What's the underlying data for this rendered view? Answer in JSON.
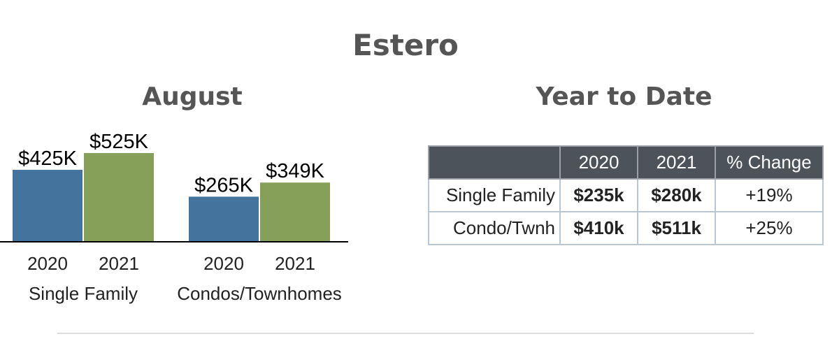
{
  "page": {
    "title": "Estero"
  },
  "chart_data": {
    "type": "bar",
    "title": "August",
    "xlabel": "",
    "ylabel": "",
    "ylim": [
      0,
      600
    ],
    "grid": false,
    "groups": [
      {
        "name": "Single Family",
        "bars": [
          {
            "category": "2020",
            "value": 425,
            "label": "$425K",
            "color": "#44749d"
          },
          {
            "category": "2021",
            "value": 525,
            "label": "$525K",
            "color": "#86a05a"
          }
        ]
      },
      {
        "name": "Condos/Townhomes",
        "bars": [
          {
            "category": "2020",
            "value": 265,
            "label": "$265K",
            "color": "#44749d"
          },
          {
            "category": "2021",
            "value": 349,
            "label": "$349K",
            "color": "#86a05a"
          }
        ]
      }
    ]
  },
  "ytd_table": {
    "title": "Year to Date",
    "columns": [
      "",
      "2020",
      "2021",
      "% Change"
    ],
    "rows": [
      {
        "label": "Single Family",
        "v2020": "$235k",
        "v2021": "$280k",
        "change": "+19%"
      },
      {
        "label": "Condo/Twnh",
        "v2020": "$410k",
        "v2021": "$511k",
        "change": "+25%"
      }
    ]
  }
}
